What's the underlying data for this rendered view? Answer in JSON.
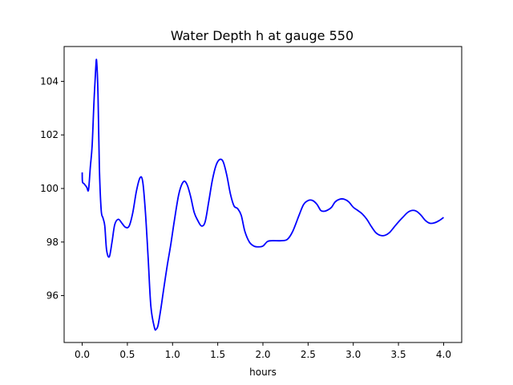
{
  "chart_data": {
    "type": "line",
    "title": "Water Depth h at gauge 550",
    "xlabel": "hours",
    "ylabel": "",
    "xlim": [
      -0.2,
      4.2
    ],
    "ylim": [
      94.25,
      105.3
    ],
    "xticks": [
      0.0,
      0.5,
      1.0,
      1.5,
      2.0,
      2.5,
      3.0,
      3.5,
      4.0
    ],
    "xtick_labels": [
      "0.0",
      "0.5",
      "1.0",
      "1.5",
      "2.0",
      "2.5",
      "3.0",
      "3.5",
      "4.0"
    ],
    "yticks": [
      96,
      98,
      100,
      102,
      104
    ],
    "ytick_labels": [
      "96",
      "98",
      "100",
      "102",
      "104"
    ],
    "grid": false,
    "line_color": "#0000ff",
    "series": [
      {
        "x": [
          0.0,
          0.003,
          0.02,
          0.05,
          0.07,
          0.09,
          0.11,
          0.13,
          0.15,
          0.16,
          0.175,
          0.19,
          0.21,
          0.23,
          0.25,
          0.27,
          0.3,
          0.33,
          0.36,
          0.4,
          0.44,
          0.48,
          0.52,
          0.56,
          0.6,
          0.64,
          0.67,
          0.7,
          0.73,
          0.76,
          0.8,
          0.82,
          0.84,
          0.87,
          0.9,
          0.94,
          0.98,
          1.02,
          1.07,
          1.12,
          1.16,
          1.2,
          1.24,
          1.28,
          1.32,
          1.36,
          1.4,
          1.44,
          1.48,
          1.52,
          1.56,
          1.6,
          1.64,
          1.68,
          1.72,
          1.76,
          1.8,
          1.85,
          1.9,
          1.95,
          2.0,
          2.05,
          2.1,
          2.2,
          2.27,
          2.33,
          2.4,
          2.45,
          2.5,
          2.55,
          2.6,
          2.64,
          2.68,
          2.72,
          2.76,
          2.8,
          2.85,
          2.9,
          2.95,
          3.0,
          3.05,
          3.1,
          3.15,
          3.2,
          3.25,
          3.3,
          3.35,
          3.4,
          3.45,
          3.5,
          3.55,
          3.6,
          3.65,
          3.7,
          3.75,
          3.8,
          3.85,
          3.9,
          3.95,
          4.0
        ],
        "y": [
          100.6,
          100.25,
          100.18,
          100.05,
          99.95,
          100.8,
          101.6,
          103.2,
          104.5,
          104.75,
          103.5,
          100.8,
          99.2,
          98.9,
          98.6,
          97.7,
          97.45,
          98.0,
          98.65,
          98.85,
          98.7,
          98.55,
          98.6,
          99.1,
          99.9,
          100.4,
          100.25,
          99.1,
          97.4,
          95.6,
          94.8,
          94.75,
          94.9,
          95.5,
          96.2,
          97.1,
          97.9,
          98.8,
          99.8,
          100.25,
          100.15,
          99.7,
          99.1,
          98.8,
          98.6,
          98.75,
          99.5,
          100.3,
          100.85,
          101.08,
          101.0,
          100.5,
          99.8,
          99.35,
          99.25,
          99.0,
          98.4,
          98.0,
          97.85,
          97.82,
          97.85,
          98.02,
          98.05,
          98.05,
          98.1,
          98.4,
          99.0,
          99.4,
          99.55,
          99.55,
          99.4,
          99.18,
          99.15,
          99.2,
          99.3,
          99.5,
          99.6,
          99.6,
          99.5,
          99.3,
          99.18,
          99.05,
          98.85,
          98.58,
          98.35,
          98.25,
          98.25,
          98.35,
          98.55,
          98.75,
          98.93,
          99.1,
          99.18,
          99.15,
          99.0,
          98.8,
          98.7,
          98.72,
          98.8,
          98.92
        ]
      }
    ]
  }
}
